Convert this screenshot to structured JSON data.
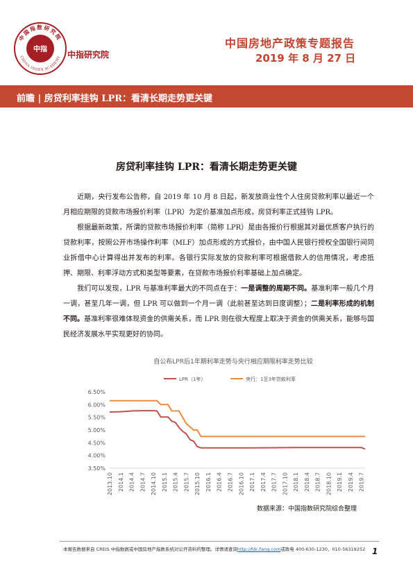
{
  "header": {
    "logo_ring_top": "中国指数研究院",
    "logo_ring_bottom": "CHINA INDEX ACADEMY",
    "logo_center": "中指",
    "org_name": "中指研究院",
    "report_title": "中国房地产政策专题报告",
    "report_date": "2019 年 8 月 27 日",
    "accent_color": "#c54830"
  },
  "section": {
    "title": "前瞻 | 房贷利率挂钩 LPR：看清长期走势更关键"
  },
  "article": {
    "title": "房贷利率挂钩 LPR：看清长期走势更关键",
    "p1": "近期，央行发布公告称，自 2019 年 10 月 8 日起，新发放商业性个人住房贷款利率以最近一个月相应期限的贷款市场报价利率（LPR）为定价基准加点形成，房贷利率正式挂钩 LPR。",
    "p2": "根据最新政策，所谓的贷款市场报价利率（简称 LPR）是由各报价行根据其对最优质客户执行的贷款利率，按照公开市场操作利率（MLF）加点形成的方式报价，由中国人民银行授权全国银行间同业拆借中心计算得出并发布的利率。各银行实际发放的贷款利率可根据借款人的信用情况，考虑抵押、期限、利率浮动方式和类型等要素，在贷款市场报价利率基础上加点确定。",
    "p3_a": "我们可以发现，LPR 与基准利率最大的不同点在于：",
    "p3_b": "一是调整的周期不同。",
    "p3_c": "基准利率一般几个月一调，甚至几年一调，但 LPR 可以做到一个月一调（此前甚至达到日度调整）；",
    "p3_d": "二是利率形成的机制不同。",
    "p3_e": "基准利率很难体现资金的供需关系，而 LPR 则在很大程度上取决于资金的供需关系，能够与国民经济发展水平实现更好的协同。"
  },
  "chart_data": {
    "type": "line",
    "title": "自公布LPR后1年期利率走势与央行相应期限利率走势比较",
    "xlabel": "",
    "ylabel": "",
    "ylim": [
      3.5,
      6.5
    ],
    "y_ticks": [
      "3.50%",
      "4.00%",
      "4.50%",
      "5.00%",
      "5.50%",
      "6.00%",
      "6.50%"
    ],
    "x_ticks": [
      "2013.10",
      "2014.1",
      "2014.4",
      "2014.7",
      "2014.10",
      "2015.1",
      "2015.4",
      "2015.7",
      "2015.10",
      "2016.1",
      "2016.4",
      "2016.7",
      "2016.10",
      "2017.1",
      "2017.4",
      "2017.7",
      "2017.10",
      "2018.1",
      "2018.4",
      "2018.7",
      "2018.10",
      "2019.1",
      "2019.4",
      "2019.7"
    ],
    "legend_position": "top",
    "grid": false,
    "series": [
      {
        "name": "LPR（1年）",
        "color": "#c0504d",
        "points": [
          [
            "2013.10",
            5.71
          ],
          [
            "2014.1",
            5.72
          ],
          [
            "2014.4",
            5.75
          ],
          [
            "2014.7",
            5.76
          ],
          [
            "2014.10",
            5.76
          ],
          [
            "2014.11",
            5.75
          ],
          [
            "2014.12",
            5.51
          ],
          [
            "2015.2",
            5.51
          ],
          [
            "2015.3",
            5.35
          ],
          [
            "2015.4",
            5.3
          ],
          [
            "2015.5",
            5.1
          ],
          [
            "2015.6",
            4.95
          ],
          [
            "2015.7",
            4.85
          ],
          [
            "2015.8",
            4.62
          ],
          [
            "2015.9",
            4.56
          ],
          [
            "2015.10",
            4.35
          ],
          [
            "2015.11",
            4.3
          ],
          [
            "2016.1",
            4.3
          ],
          [
            "2017.1",
            4.3
          ],
          [
            "2018.1",
            4.31
          ],
          [
            "2019.1",
            4.31
          ],
          [
            "2019.7",
            4.31
          ],
          [
            "2019.8",
            4.25
          ]
        ]
      },
      {
        "name": "央行：1至3年贷款利率",
        "color": "#ed8b3c",
        "points": [
          [
            "2013.10",
            6.15
          ],
          [
            "2014.1",
            6.15
          ],
          [
            "2014.4",
            6.15
          ],
          [
            "2014.7",
            6.15
          ],
          [
            "2014.10",
            6.15
          ],
          [
            "2014.11",
            6.15
          ],
          [
            "2014.12",
            6.0
          ],
          [
            "2015.2",
            6.0
          ],
          [
            "2015.3",
            5.75
          ],
          [
            "2015.5",
            5.75
          ],
          [
            "2015.6",
            5.5
          ],
          [
            "2015.7",
            5.25
          ],
          [
            "2015.9",
            5.0
          ],
          [
            "2015.10",
            5.0
          ],
          [
            "2015.11",
            4.75
          ],
          [
            "2016.1",
            4.75
          ],
          [
            "2017.1",
            4.75
          ],
          [
            "2018.1",
            4.75
          ],
          [
            "2019.1",
            4.75
          ],
          [
            "2019.8",
            4.75
          ]
        ]
      }
    ]
  },
  "source": "数据来源：中国指数研究院综合整理",
  "footer": {
    "text_a": "本报告数据来自 CREIS 中指数据或中国房地产指数系统对公开资料的整理。详情请查询",
    "link": "http://fdc.fang.com",
    "text_b": "或致电 400-630-1230、010-56319252",
    "page": "1"
  }
}
